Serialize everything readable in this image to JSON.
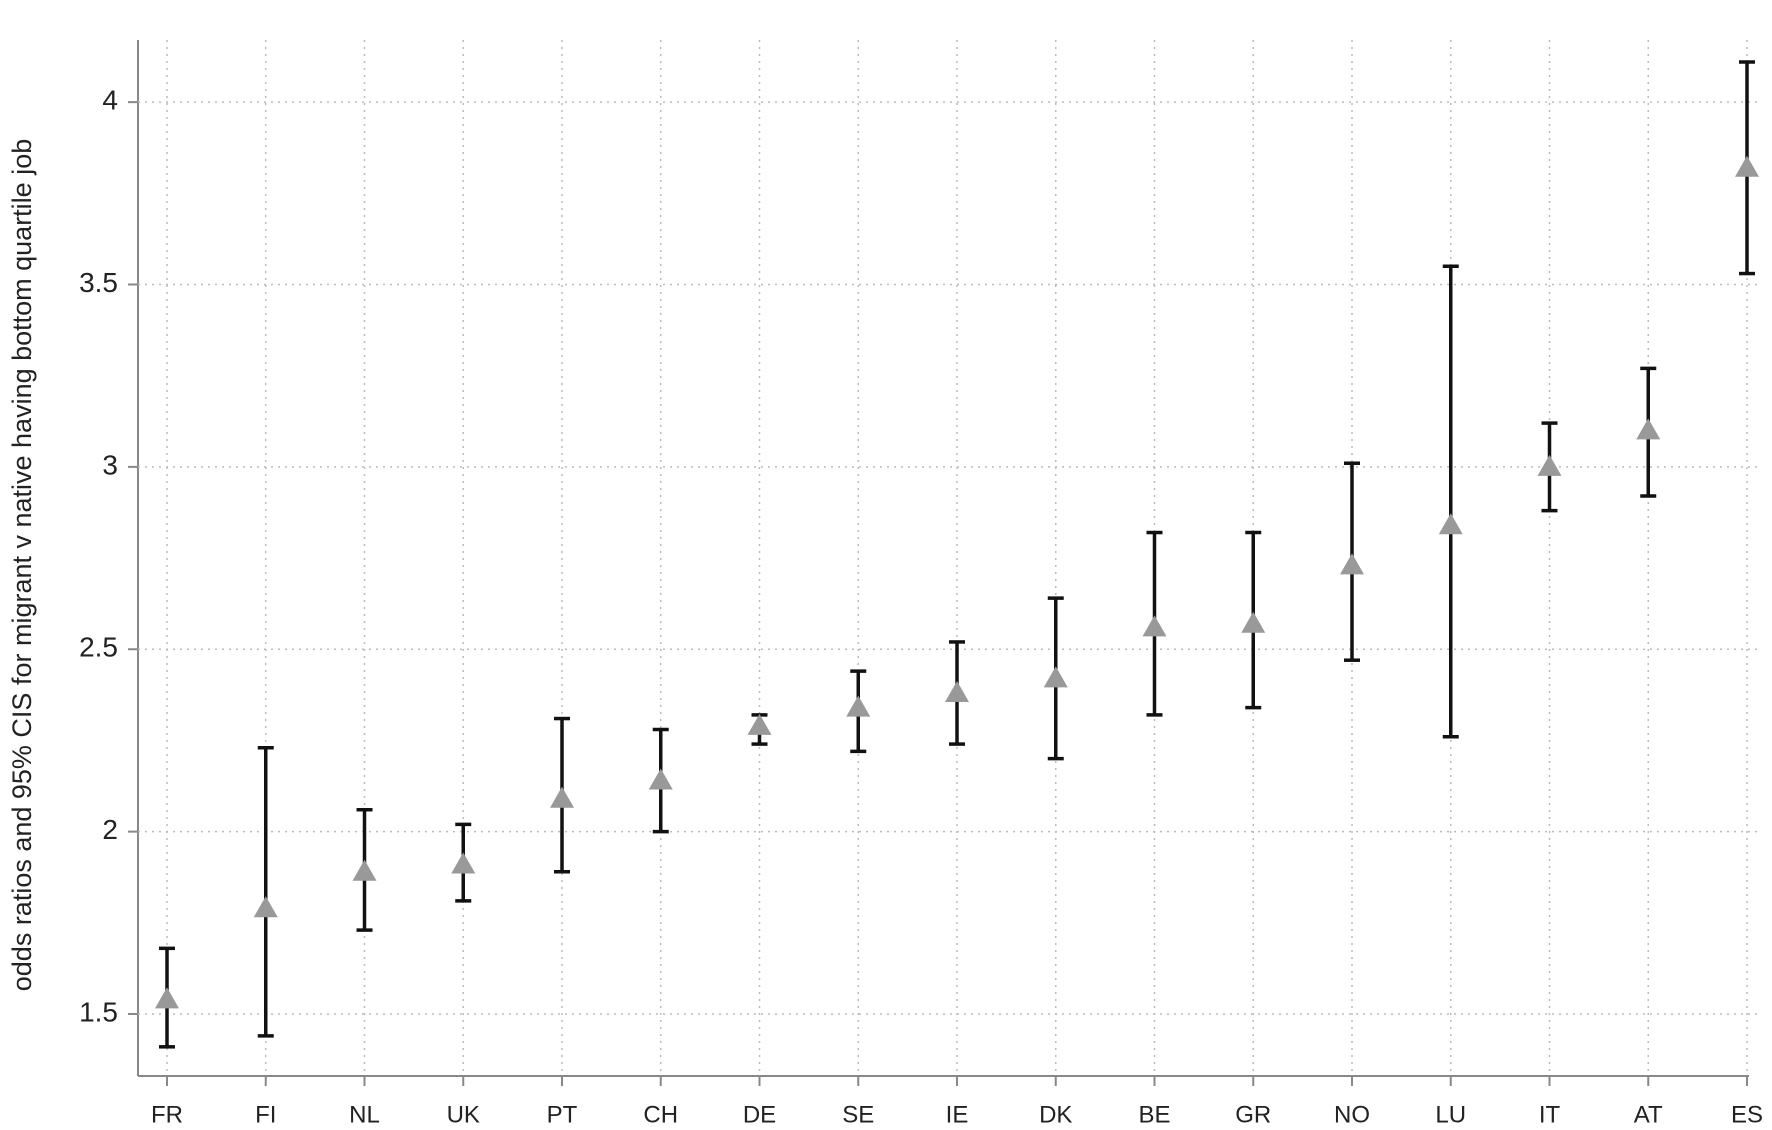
{
  "chart_data": {
    "type": "errorbar",
    "y_label": "odds ratios and 95% CIS for migrant v native having bottom quartile job",
    "categories": [
      "FR",
      "FI",
      "NL",
      "UK",
      "PT",
      "CH",
      "DE",
      "SE",
      "IE",
      "DK",
      "BE",
      "GR",
      "NO",
      "LU",
      "IT",
      "AT",
      "ES"
    ],
    "values": [
      1.54,
      1.79,
      1.89,
      1.91,
      2.09,
      2.14,
      2.29,
      2.34,
      2.38,
      2.42,
      2.56,
      2.57,
      2.73,
      2.84,
      3.0,
      3.1,
      3.82
    ],
    "ci_low": [
      1.41,
      1.44,
      1.73,
      1.81,
      1.89,
      2.0,
      2.24,
      2.22,
      2.24,
      2.2,
      2.32,
      2.34,
      2.47,
      2.26,
      2.88,
      2.92,
      3.53
    ],
    "ci_high": [
      1.68,
      2.23,
      2.06,
      2.02,
      2.31,
      2.28,
      2.32,
      2.44,
      2.52,
      2.64,
      2.82,
      2.82,
      3.01,
      3.55,
      3.12,
      3.27,
      4.11
    ],
    "marker_color": "#999999",
    "bar_color": "#111111",
    "ylim": [
      1.33,
      4.28
    ],
    "yticks": [
      1.5,
      2,
      2.5,
      3,
      3.5,
      4
    ],
    "grid": true
  }
}
